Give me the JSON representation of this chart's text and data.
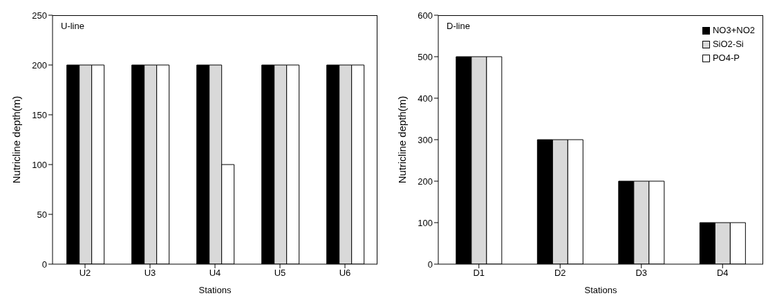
{
  "chart_data": [
    {
      "type": "bar",
      "annotations": [
        "U-line"
      ],
      "xlabel": "Stations",
      "ylabel": "Nutricline depth(m)",
      "categories": [
        "U2",
        "U3",
        "U4",
        "U5",
        "U6"
      ],
      "ylim": [
        0,
        250
      ],
      "yticks": [
        0,
        50,
        100,
        150,
        200,
        250
      ],
      "grid": false,
      "legend": false,
      "series": [
        {
          "color": "#000000",
          "values": [
            200,
            200,
            200,
            200,
            200
          ]
        },
        {
          "color": "#d9d9d9",
          "values": [
            200,
            200,
            200,
            200,
            200
          ]
        },
        {
          "color": "#ffffff",
          "values": [
            200,
            200,
            100,
            200,
            200
          ]
        }
      ]
    },
    {
      "type": "bar",
      "annotations": [
        "D-line"
      ],
      "xlabel": "Stations",
      "ylabel": "Nutricline depth(m)",
      "categories": [
        "D1",
        "D2",
        "D3",
        "D4"
      ],
      "ylim": [
        0,
        600
      ],
      "yticks": [
        0,
        100,
        200,
        300,
        400,
        500,
        600
      ],
      "grid": false,
      "legend": "top right",
      "series": [
        {
          "name": "NO3+NO2",
          "color": "#000000",
          "values": [
            500,
            300,
            200,
            100
          ]
        },
        {
          "name": "SiO2-Si",
          "color": "#d9d9d9",
          "values": [
            500,
            300,
            200,
            100
          ]
        },
        {
          "name": "PO4-P",
          "color": "#ffffff",
          "values": [
            500,
            300,
            200,
            100
          ]
        }
      ]
    }
  ]
}
